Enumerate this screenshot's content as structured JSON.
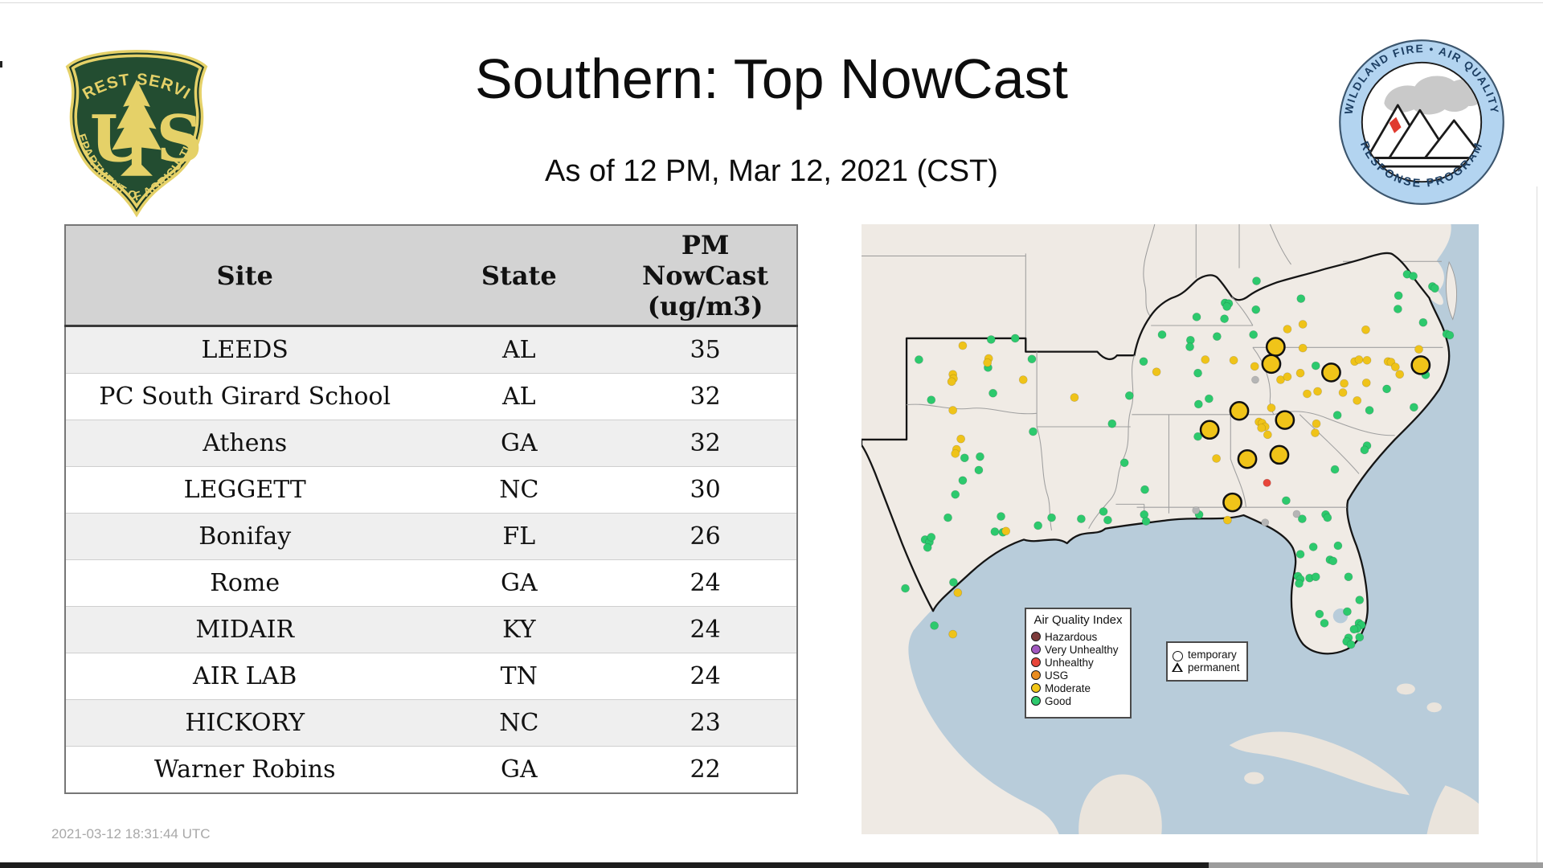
{
  "page": {
    "title": "Southern: Top NowCast",
    "subtitle": "As of 12 PM, Mar 12, 2021 (CST)",
    "timestamp": "2021-03-12 18:31:44 UTC"
  },
  "logos": {
    "forest_service": {
      "arc_top": "FOREST SERVICE",
      "letter_left": "U",
      "letter_right": "S",
      "arc_bottom": "DEPARTMENT OF AGRICULTURE",
      "shield_green": "#234d31",
      "shield_gold": "#e5d168"
    },
    "wfaqrp": {
      "arc_top": "WILDLAND FIRE • AIR QUALITY",
      "arc_bottom": "RESPONSE PROGRAM",
      "ring_blue": "#b3d4f0",
      "text_navy": "#1d3f63",
      "smoke_gray": "#c9c9c9",
      "flame_red": "#e03a2f"
    }
  },
  "table": {
    "headers": {
      "site": "Site",
      "state": "State",
      "pm_lines": [
        "PM",
        "NowCast",
        "(ug/m3)"
      ]
    },
    "rows": [
      {
        "site": "LEEDS",
        "state": "AL",
        "value": "35"
      },
      {
        "site": "PC South Girard School",
        "state": "AL",
        "value": "32"
      },
      {
        "site": "Athens",
        "state": "GA",
        "value": "32"
      },
      {
        "site": "LEGGETT",
        "state": "NC",
        "value": "30"
      },
      {
        "site": "Bonifay",
        "state": "FL",
        "value": "26"
      },
      {
        "site": "Rome",
        "state": "GA",
        "value": "24"
      },
      {
        "site": "MIDAIR",
        "state": "KY",
        "value": "24"
      },
      {
        "site": "AIR LAB",
        "state": "TN",
        "value": "24"
      },
      {
        "site": "HICKORY",
        "state": "NC",
        "value": "23"
      },
      {
        "site": "Warner Robins",
        "state": "GA",
        "value": "22"
      }
    ]
  },
  "map": {
    "water_color": "#b8ccda",
    "land_color": "#efeae4",
    "legend": {
      "title": "Air Quality Index",
      "items": [
        {
          "label": "Hazardous",
          "color": "#7d3b3b"
        },
        {
          "label": "Very Unhealthy",
          "color": "#a159c0"
        },
        {
          "label": "Unhealthy",
          "color": "#e8463a"
        },
        {
          "label": "USG",
          "color": "#e98c1f"
        },
        {
          "label": "Moderate",
          "color": "#f2c718"
        },
        {
          "label": "Good",
          "color": "#2dc96d"
        }
      ]
    },
    "type_legend": {
      "items": [
        {
          "label": "temporary",
          "glyph": "circle"
        },
        {
          "label": "permanent",
          "glyph": "triangle"
        }
      ]
    },
    "marker_styles": {
      "good": {
        "color": "#2dc96d",
        "r": 0.66,
        "stroke": "rgba(0,0,0,0.18)",
        "sw": 0.08
      },
      "moderate": {
        "color": "#efc319",
        "r": 0.66,
        "stroke": "rgba(0,0,0,0.18)",
        "sw": 0.08
      },
      "gray": {
        "color": "#b5b5b5",
        "r": 0.6,
        "stroke": "rgba(0,0,0,0.15)",
        "sw": 0.08
      },
      "unhealthy": {
        "color": "#e8463a",
        "r": 0.62,
        "stroke": "rgba(0,0,0,0.2)",
        "sw": 0.08
      },
      "large_moderate": {
        "color": "#f0c419",
        "r": 1.45,
        "stroke": "#111111",
        "sw": 0.33
      }
    },
    "markers": {
      "good": [
        [
          21.0,
          18.9
        ],
        [
          24.9,
          18.7
        ],
        [
          9.3,
          22.2
        ],
        [
          27.6,
          22.1
        ],
        [
          45.7,
          22.5
        ],
        [
          48.7,
          18.1
        ],
        [
          20.5,
          23.5
        ],
        [
          21.3,
          27.7
        ],
        [
          11.3,
          28.8
        ],
        [
          43.4,
          28.1
        ],
        [
          40.6,
          32.7
        ],
        [
          27.8,
          34.0
        ],
        [
          16.7,
          38.3
        ],
        [
          19.2,
          38.1
        ],
        [
          19.0,
          40.3
        ],
        [
          16.4,
          42.0
        ],
        [
          15.2,
          44.3
        ],
        [
          42.6,
          39.1
        ],
        [
          45.9,
          43.5
        ],
        [
          14.0,
          48.1
        ],
        [
          22.6,
          47.9
        ],
        [
          28.6,
          49.4
        ],
        [
          30.8,
          48.1
        ],
        [
          35.6,
          48.3
        ],
        [
          39.2,
          47.1
        ],
        [
          39.9,
          48.5
        ],
        [
          45.8,
          47.6
        ],
        [
          46.1,
          48.7
        ],
        [
          7.1,
          59.7
        ],
        [
          14.9,
          58.7
        ],
        [
          11.8,
          65.8
        ],
        [
          10.3,
          51.7
        ],
        [
          11.0,
          52.1
        ],
        [
          11.3,
          51.3
        ],
        [
          10.7,
          53.0
        ],
        [
          21.6,
          50.4
        ],
        [
          22.9,
          50.5
        ],
        [
          64.0,
          9.3
        ],
        [
          71.2,
          12.2
        ],
        [
          58.9,
          12.9
        ],
        [
          59.5,
          13.0
        ],
        [
          59.2,
          13.5
        ],
        [
          54.3,
          15.2
        ],
        [
          58.8,
          15.5
        ],
        [
          63.9,
          14.0
        ],
        [
          57.6,
          18.4
        ],
        [
          63.5,
          18.1
        ],
        [
          53.3,
          19.0
        ],
        [
          53.2,
          20.1
        ],
        [
          88.4,
          8.2
        ],
        [
          89.4,
          8.5
        ],
        [
          92.5,
          10.2
        ],
        [
          92.9,
          10.5
        ],
        [
          87.0,
          11.7
        ],
        [
          86.9,
          13.9
        ],
        [
          91.0,
          16.1
        ],
        [
          94.8,
          18.0
        ],
        [
          95.3,
          18.2
        ],
        [
          54.5,
          24.4
        ],
        [
          73.6,
          23.2
        ],
        [
          85.1,
          27.0
        ],
        [
          56.3,
          28.6
        ],
        [
          54.6,
          29.5
        ],
        [
          77.1,
          31.3
        ],
        [
          82.3,
          30.5
        ],
        [
          54.5,
          34.8
        ],
        [
          89.5,
          30.0
        ],
        [
          91.4,
          24.7
        ],
        [
          81.9,
          36.3
        ],
        [
          81.5,
          37.0
        ],
        [
          76.7,
          40.2
        ],
        [
          68.8,
          45.3
        ],
        [
          75.2,
          47.6
        ],
        [
          75.5,
          48.1
        ],
        [
          71.4,
          48.3
        ],
        [
          54.7,
          47.6
        ],
        [
          73.2,
          52.9
        ],
        [
          77.2,
          52.7
        ],
        [
          75.9,
          55.0
        ],
        [
          76.4,
          55.2
        ],
        [
          71.1,
          54.1
        ],
        [
          78.9,
          57.8
        ],
        [
          70.7,
          57.7
        ],
        [
          71.1,
          58.2
        ],
        [
          70.9,
          58.9
        ],
        [
          72.6,
          58.0
        ],
        [
          73.6,
          57.8
        ],
        [
          80.7,
          61.6
        ],
        [
          78.7,
          63.5
        ],
        [
          74.2,
          63.9
        ],
        [
          75.0,
          65.4
        ],
        [
          80.6,
          65.4
        ],
        [
          81.0,
          65.7
        ],
        [
          80.3,
          66.3
        ],
        [
          79.8,
          66.4
        ],
        [
          80.7,
          67.7
        ],
        [
          78.9,
          67.8
        ],
        [
          78.6,
          68.4
        ],
        [
          79.3,
          68.9
        ]
      ],
      "moderate": [
        [
          16.4,
          19.9
        ],
        [
          20.6,
          22.0
        ],
        [
          20.4,
          22.7
        ],
        [
          14.8,
          24.6
        ],
        [
          14.9,
          25.3
        ],
        [
          14.6,
          25.8
        ],
        [
          14.8,
          30.5
        ],
        [
          26.2,
          25.5
        ],
        [
          47.8,
          24.2
        ],
        [
          34.5,
          28.4
        ],
        [
          16.1,
          35.2
        ],
        [
          15.4,
          36.9
        ],
        [
          15.2,
          37.6
        ],
        [
          15.6,
          60.4
        ],
        [
          14.8,
          67.2
        ],
        [
          23.4,
          50.3
        ],
        [
          69.0,
          17.2
        ],
        [
          71.5,
          16.4
        ],
        [
          81.7,
          17.3
        ],
        [
          55.7,
          22.2
        ],
        [
          60.3,
          22.3
        ],
        [
          63.7,
          23.3
        ],
        [
          67.9,
          25.5
        ],
        [
          69.0,
          25.0
        ],
        [
          71.1,
          24.4
        ],
        [
          71.5,
          20.3
        ],
        [
          79.9,
          22.5
        ],
        [
          80.6,
          22.2
        ],
        [
          81.9,
          22.3
        ],
        [
          85.3,
          22.5
        ],
        [
          85.8,
          22.6
        ],
        [
          86.5,
          23.4
        ],
        [
          87.2,
          24.6
        ],
        [
          90.3,
          20.5
        ],
        [
          78.2,
          26.1
        ],
        [
          81.8,
          26.0
        ],
        [
          72.2,
          27.8
        ],
        [
          73.9,
          27.4
        ],
        [
          78.0,
          27.6
        ],
        [
          80.3,
          28.9
        ],
        [
          66.4,
          30.1
        ],
        [
          64.4,
          32.4
        ],
        [
          64.9,
          32.6
        ],
        [
          65.4,
          33.2
        ],
        [
          64.8,
          33.4
        ],
        [
          65.8,
          34.5
        ],
        [
          73.7,
          32.7
        ],
        [
          73.5,
          34.2
        ],
        [
          57.5,
          38.4
        ],
        [
          59.3,
          48.5
        ]
      ],
      "gray": [
        [
          63.8,
          25.5
        ],
        [
          54.2,
          46.9
        ],
        [
          65.4,
          48.9
        ],
        [
          70.5,
          47.5
        ]
      ],
      "unhealthy": [
        [
          65.7,
          42.4
        ]
      ],
      "large_moderate": [
        [
          67.1,
          20.1
        ],
        [
          66.4,
          22.9
        ],
        [
          76.1,
          24.3
        ],
        [
          90.6,
          23.1
        ],
        [
          61.2,
          30.6
        ],
        [
          68.6,
          32.1
        ],
        [
          56.4,
          33.7
        ],
        [
          62.5,
          38.5
        ],
        [
          67.7,
          37.8
        ],
        [
          60.1,
          45.6
        ]
      ]
    }
  }
}
